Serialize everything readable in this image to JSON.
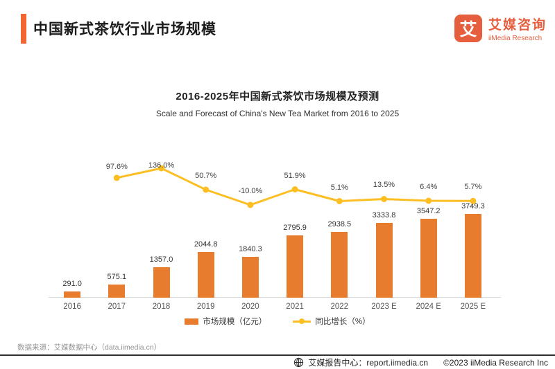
{
  "header": {
    "title": "中国新式茶饮行业市场规模",
    "logo": {
      "glyph": "艾",
      "name_cn": "艾媒咨询",
      "name_en": "iiMedia Research"
    }
  },
  "chart_data": {
    "type": "bar",
    "title": "2016-2025年中国新式茶饮市场规模及预测",
    "subtitle": "Scale and Forecast of China's New Tea Market from 2016 to 2025",
    "categories": [
      "2016",
      "2017",
      "2018",
      "2019",
      "2020",
      "2021",
      "2022",
      "2023 E",
      "2024 E",
      "2025 E"
    ],
    "series": [
      {
        "name": "市场规模（亿元）",
        "type": "bar",
        "values": [
          291.0,
          575.1,
          1357.0,
          2044.8,
          1840.3,
          2795.9,
          2938.5,
          3333.8,
          3547.2,
          3749.3
        ],
        "labels": [
          "291.0",
          "575.1",
          "1357.0",
          "2044.8",
          "1840.3",
          "2795.9",
          "2938.5",
          "3333.8",
          "3547.2",
          "3749.3"
        ]
      },
      {
        "name": "同比增长（%）",
        "type": "line",
        "values": [
          null,
          97.6,
          136.0,
          50.7,
          -10.0,
          51.9,
          5.1,
          13.5,
          6.4,
          5.7
        ],
        "labels": [
          null,
          "97.6%",
          "136.0%",
          "50.7%",
          "-10.0%",
          "51.9%",
          "5.1%",
          "13.5%",
          "6.4%",
          "5.7%"
        ]
      }
    ],
    "ylim_bar": [
      0,
      3900
    ],
    "ylim_line": [
      -10,
      136
    ],
    "legend_position": "bottom",
    "grid": false,
    "colors": {
      "accent": "#F26632",
      "logo": "#E55F3E",
      "bar": "#E87C2E",
      "line": "#FDBE23"
    }
  },
  "source_note": "数据来源：艾媒数据中心（data.iimedia.cn）",
  "footer": {
    "report_center": "艾媒报告中心：report.iimedia.cn",
    "copyright": "©2023  iiMedia Research  Inc"
  }
}
